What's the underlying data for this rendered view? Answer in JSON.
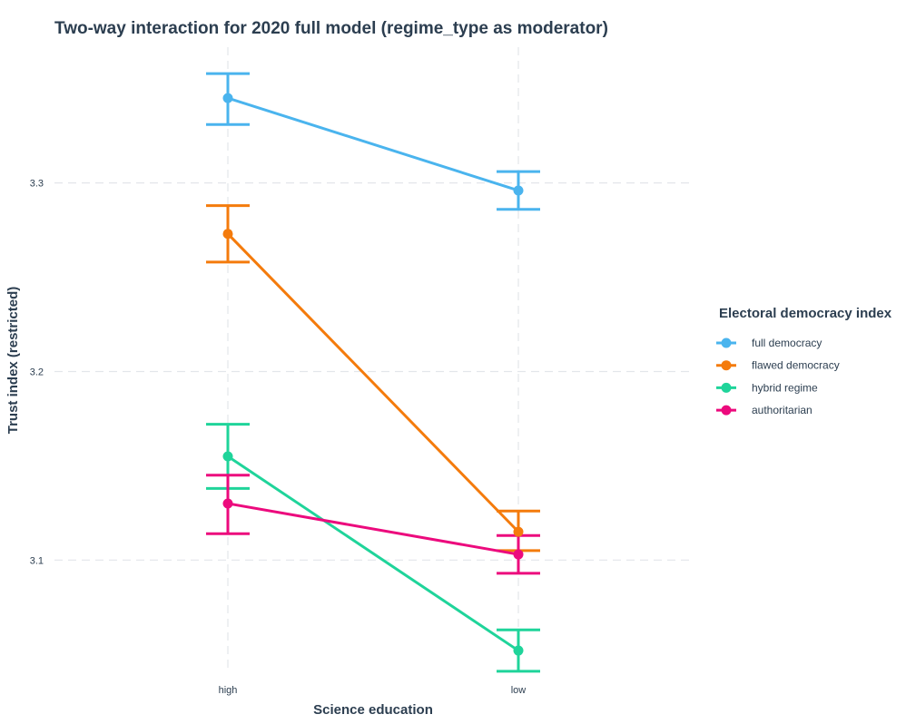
{
  "chart_data": {
    "type": "line",
    "title": "Two-way interaction for 2020 full model (regime_type as moderator)",
    "xlabel": "Science education",
    "ylabel": "Trust index (restricted)",
    "categories": [
      "high",
      "low"
    ],
    "ylim": [
      3.04,
      3.372
    ],
    "yticks": [
      3.1,
      3.2,
      3.3
    ],
    "ytick_labels": [
      "3.1",
      "3.2",
      "3.3"
    ],
    "grid": true,
    "legend": {
      "title": "Electoral democracy index",
      "placement": "right"
    },
    "series": [
      {
        "name": "full democracy",
        "color": "#4ab4ee",
        "values": [
          3.345,
          3.296
        ],
        "lower": [
          3.331,
          3.286
        ],
        "upper": [
          3.358,
          3.306
        ]
      },
      {
        "name": "flawed democracy",
        "color": "#f47b0c",
        "values": [
          3.273,
          3.115
        ],
        "lower": [
          3.258,
          3.105
        ],
        "upper": [
          3.288,
          3.126
        ]
      },
      {
        "name": "hybrid regime",
        "color": "#1fd49a",
        "values": [
          3.155,
          3.052
        ],
        "lower": [
          3.138,
          3.041
        ],
        "upper": [
          3.172,
          3.063
        ]
      },
      {
        "name": "authoritarian",
        "color": "#ec0a7d",
        "values": [
          3.13,
          3.103
        ],
        "lower": [
          3.114,
          3.093
        ],
        "upper": [
          3.145,
          3.113
        ]
      }
    ]
  }
}
